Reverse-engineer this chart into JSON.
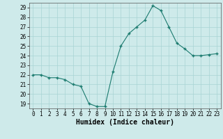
{
  "x": [
    0,
    1,
    2,
    3,
    4,
    5,
    6,
    7,
    8,
    9,
    10,
    11,
    12,
    13,
    14,
    15,
    16,
    17,
    18,
    19,
    20,
    21,
    22,
    23
  ],
  "y": [
    22.0,
    22.0,
    21.7,
    21.7,
    21.5,
    21.0,
    20.8,
    19.0,
    18.7,
    18.7,
    22.3,
    25.0,
    26.3,
    27.0,
    27.7,
    29.2,
    28.7,
    27.0,
    25.3,
    24.7,
    24.0,
    24.0,
    24.1,
    24.2
  ],
  "line_color": "#1a7a6e",
  "marker_color": "#1a7a6e",
  "bg_color": "#ceeaea",
  "grid_color": "#a8d4d4",
  "xlabel": "Humidex (Indice chaleur)",
  "xlim": [
    -0.5,
    23.5
  ],
  "ylim": [
    18.5,
    29.5
  ],
  "yticks": [
    19,
    20,
    21,
    22,
    23,
    24,
    25,
    26,
    27,
    28,
    29
  ],
  "xticks": [
    0,
    1,
    2,
    3,
    4,
    5,
    6,
    7,
    8,
    9,
    10,
    11,
    12,
    13,
    14,
    15,
    16,
    17,
    18,
    19,
    20,
    21,
    22,
    23
  ],
  "tick_fontsize": 5.5,
  "xlabel_fontsize": 7.0
}
